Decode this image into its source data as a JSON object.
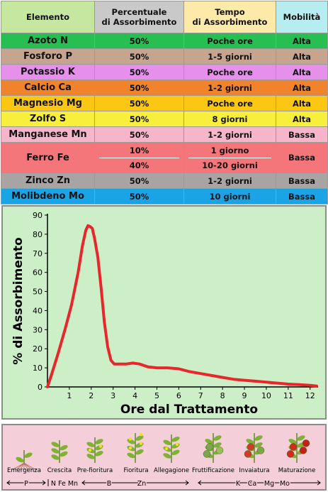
{
  "table": {
    "headers": [
      "Elemento",
      "Percentuale\ndi Assorbimento",
      "Tempo\ndi Assorbimento",
      "Mobilità"
    ],
    "header_colors": [
      "#c6e7a0",
      "#c9c9c9",
      "#fde9a8",
      "#b7ecf0"
    ],
    "rows": [
      {
        "element": "Azoto N",
        "percent": "50%",
        "time": "Poche ore",
        "mobility": "Alta",
        "color": "#27be52"
      },
      {
        "element": "Fosforo P",
        "percent": "50%",
        "time": "1-5 giorni",
        "mobility": "Alta",
        "color": "#c7a48d"
      },
      {
        "element": "Potassio K",
        "percent": "50%",
        "time": "Poche ore",
        "mobility": "Alta",
        "color": "#e690ec"
      },
      {
        "element": "Calcio Ca",
        "percent": "50%",
        "time": "1-2 giorni",
        "mobility": "Alta",
        "color": "#f0832b"
      },
      {
        "element": "Magnesio Mg",
        "percent": "50%",
        "time": "Poche ore",
        "mobility": "Alta",
        "color": "#fbc713"
      },
      {
        "element": "Zolfo S",
        "percent": "50%",
        "time": "8 giorni",
        "mobility": "Alta",
        "color": "#f7ef3c"
      },
      {
        "element": "Manganese Mn",
        "percent": "50%",
        "time": "1-2 giorni",
        "mobility": "Bassa",
        "color": "#f6b5c8"
      },
      {
        "element": "Ferro Fe",
        "percent": "10%",
        "percent2": "40%",
        "time": "1 giorno",
        "time2": "10-20 giorni",
        "mobility": "Bassa",
        "color": "#f5767a"
      },
      {
        "element": "Zinco Zn",
        "percent": "50%",
        "time": "1-2 giorni",
        "mobility": "Bassa",
        "color": "#a8a4a4"
      },
      {
        "element": "Molibdeno Mo",
        "percent": "50%",
        "time": "10 giorni",
        "mobility": "Bassa",
        "color": "#1aa4e6"
      }
    ]
  },
  "chart_data": {
    "type": "line",
    "xlabel": "Ore dal Trattamento",
    "ylabel": "% di Assorbimento",
    "xlim": [
      0,
      12.3
    ],
    "ylim": [
      0,
      90
    ],
    "x_ticks": [
      1,
      2,
      3,
      4,
      5,
      6,
      7,
      8,
      9,
      10,
      11,
      12
    ],
    "y_ticks": [
      0,
      10,
      20,
      30,
      40,
      50,
      60,
      70,
      80,
      90
    ],
    "line_color": "#e8262b",
    "series": [
      {
        "x": [
          0,
          0.2,
          0.5,
          0.8,
          1.1,
          1.4,
          1.6,
          1.75,
          1.85,
          1.95,
          2.05,
          2.15,
          2.3,
          2.45,
          2.6,
          2.75,
          2.9,
          3.05,
          3.3,
          3.6,
          3.9,
          4.2,
          4.6,
          5.0,
          5.5,
          6.0,
          6.5,
          7.0,
          7.5,
          8.0,
          8.5,
          9.0,
          9.5,
          10.0,
          10.5,
          11.0,
          11.5,
          12.0,
          12.3
        ],
        "y": [
          0,
          7,
          18,
          30,
          43,
          60,
          74,
          82,
          84.5,
          84,
          83,
          78,
          68,
          52,
          34,
          21,
          14,
          12,
          12,
          12,
          12.5,
          12,
          10.5,
          10,
          10,
          9.5,
          8,
          7,
          6,
          5,
          4,
          3.5,
          3,
          2.5,
          2,
          1.5,
          1.2,
          0.8,
          0.5
        ]
      }
    ]
  },
  "stages": {
    "labels": [
      "Emergenza",
      "Crescita",
      "Pre-fioritura",
      "Fioritura",
      "Allegagione",
      "Fruttificazione",
      "Invaiatura",
      "Maturazione"
    ],
    "nutrients": [
      "P",
      "N Fe Mn",
      "B",
      "Zn",
      "K",
      "Ca",
      "Mg",
      "Mo"
    ]
  }
}
